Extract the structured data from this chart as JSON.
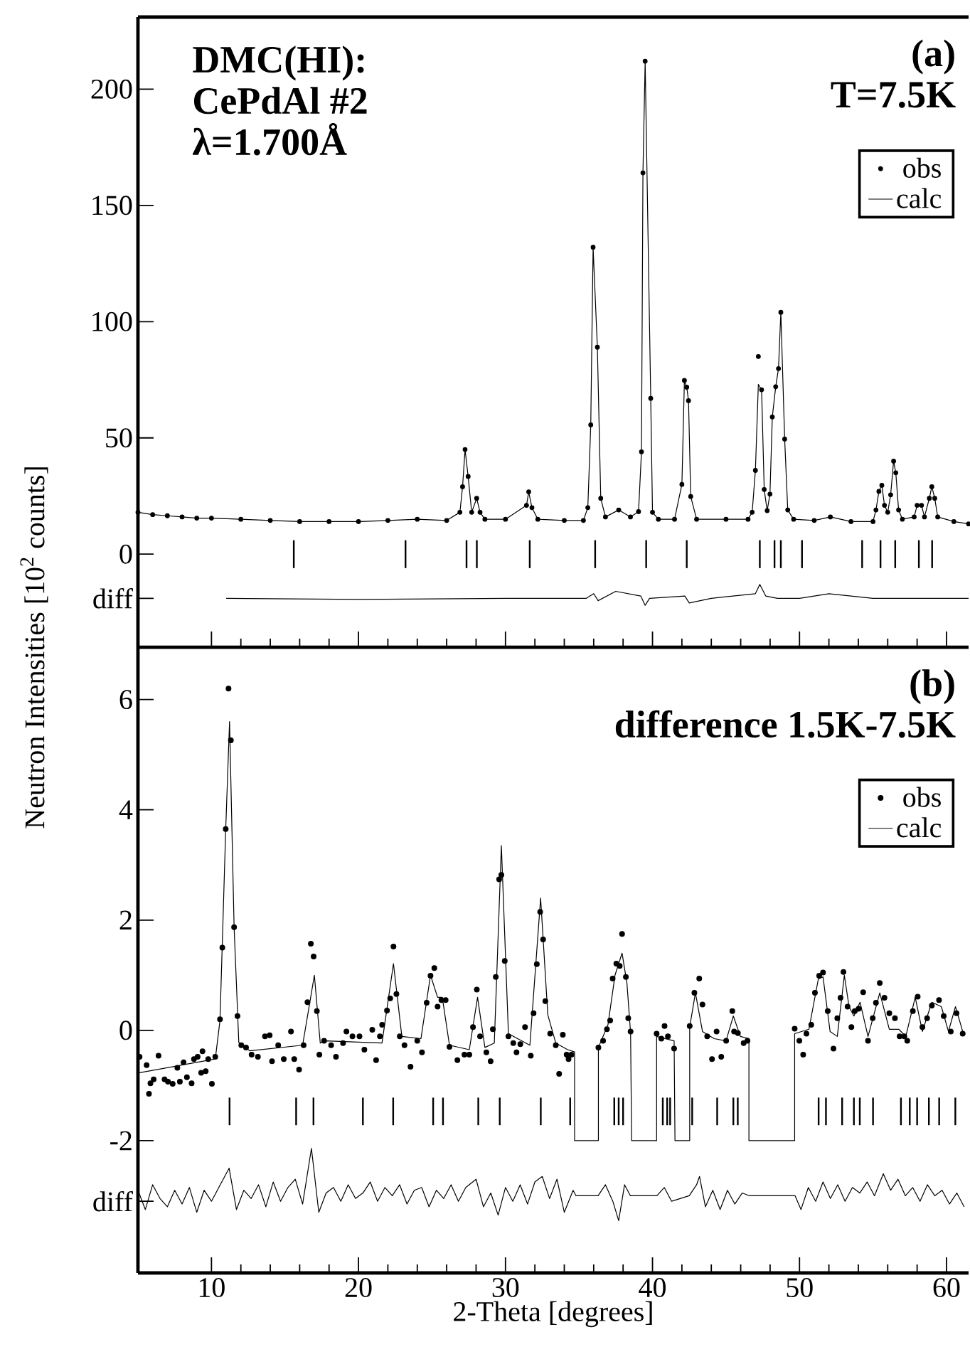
{
  "chart_data": [
    {
      "type": "scatter",
      "title": "(a)",
      "subtitle": "T=7.5K",
      "annotations": [
        "DMC(HI):",
        "CePdAl #2",
        "λ=1.700Å"
      ],
      "xlim": [
        5,
        61.5
      ],
      "xticks": [
        10,
        20,
        30,
        40,
        50,
        60
      ],
      "ylim": [
        -40,
        231
      ],
      "yticks": [
        0,
        50,
        100,
        150,
        200,
        {
          "value": -19,
          "label": "diff"
        }
      ],
      "tick_labels": "y",
      "legend": "top right",
      "x": [
        5,
        6,
        7,
        8,
        9,
        10,
        12,
        14,
        16,
        18,
        20,
        22,
        24,
        26,
        26.9,
        27.08,
        27.25,
        27.46,
        27.7,
        28.04,
        28.27,
        28.6,
        30,
        31.43,
        31.58,
        31.8,
        32.2,
        34,
        35.3,
        35.6,
        35.8,
        35.96,
        36.25,
        36.48,
        36.8,
        37.7,
        38.5,
        39.05,
        39.25,
        39.35,
        39.5,
        39.88,
        40.0,
        40.4,
        41.5,
        42.0,
        42.17,
        42.33,
        42.45,
        42.6,
        43.0,
        45,
        46.5,
        46.78,
        47.0,
        47.2,
        47.42,
        47.6,
        47.8,
        47.99,
        48.15,
        48.38,
        48.57,
        48.73,
        48.99,
        49.2,
        49.6,
        51,
        52.1,
        53.5,
        55.0,
        55.2,
        55.4,
        55.6,
        55.78,
        56.0,
        56.2,
        56.4,
        56.55,
        56.74,
        57.0,
        57.8,
        58.0,
        58.3,
        58.5,
        58.83,
        59.0,
        59.2,
        59.4,
        60.5,
        61.5
      ],
      "series": [
        {
          "name": "obs",
          "marker": "circle",
          "color": "#000000",
          "values": [
            18,
            17,
            16.5,
            16,
            15.5,
            15.5,
            15,
            14.5,
            14,
            14,
            14,
            14.5,
            15,
            14.5,
            18,
            29,
            45,
            33.4,
            18,
            24,
            18,
            15,
            15,
            21,
            26.8,
            20,
            15,
            14.5,
            14.5,
            20,
            55.6,
            132,
            89,
            24,
            16,
            19,
            16,
            18.3,
            44,
            164,
            212,
            67,
            18,
            15,
            15,
            30,
            74.7,
            71.8,
            66,
            24.8,
            15,
            15,
            15,
            18,
            36,
            85,
            70.7,
            27.8,
            18.7,
            25.8,
            59,
            72,
            79.8,
            104,
            49.5,
            19,
            15,
            14.5,
            16,
            14,
            14,
            19,
            27,
            29.6,
            21,
            18,
            25.5,
            40,
            35,
            19,
            15,
            16,
            21,
            21,
            16,
            24,
            29,
            24,
            16,
            14,
            13
          ]
        },
        {
          "name": "calc",
          "type": "line",
          "color": "#000000",
          "values": [
            18,
            17,
            16.5,
            16,
            15.5,
            15.5,
            15,
            14.5,
            14,
            14,
            14,
            14.5,
            15,
            14.5,
            18,
            29,
            45,
            33.4,
            18,
            24,
            18,
            15,
            15,
            21,
            26.8,
            20,
            15,
            14.5,
            14.5,
            20,
            55.6,
            132,
            89,
            24,
            16,
            19,
            16,
            18.3,
            44,
            164,
            212,
            67,
            18,
            15,
            15,
            30,
            74.7,
            71.8,
            66,
            24.8,
            15,
            15,
            15,
            18,
            36,
            73,
            70.7,
            27.8,
            18.7,
            25.8,
            59,
            72,
            79.8,
            104,
            49.5,
            19,
            15,
            14.5,
            16,
            14,
            14,
            19,
            27,
            29.6,
            21,
            18,
            25.5,
            40,
            35,
            19,
            15,
            16,
            21,
            21,
            16,
            24,
            29,
            24,
            16,
            14,
            13
          ]
        },
        {
          "type": "bar",
          "color": "#000000",
          "x": [
            15.6,
            23.2,
            27.35,
            28.05,
            31.65,
            36.1,
            39.57,
            42.33,
            47.3,
            48.3,
            48.73,
            50.17,
            54.26,
            55.51,
            56.51,
            58.12,
            59.02
          ],
          "base": [
            -6,
            -6,
            -6,
            -6,
            -6,
            -6,
            -6,
            -6,
            -6,
            -6,
            -6,
            -6,
            -6,
            -6,
            -6,
            -6,
            -6
          ],
          "values": [
            12,
            12,
            12,
            12,
            12,
            12,
            12,
            12,
            12,
            12,
            12,
            12,
            12,
            12,
            12,
            12,
            12
          ]
        },
        {
          "type": "line",
          "color": "#000000",
          "x": [
            11,
            20,
            30,
            35.5,
            36,
            36.3,
            37.5,
            39.2,
            39.5,
            39.8,
            42.2,
            42.5,
            44,
            47.0,
            47.3,
            47.7,
            48.5,
            50,
            52,
            55,
            58,
            61.5
          ],
          "values": [
            -19,
            -19.5,
            -19,
            -19,
            -17,
            -20,
            -16,
            -18,
            -22,
            -19,
            -18,
            -21,
            -19,
            -17,
            -13,
            -18,
            -19,
            -19,
            -17,
            -19,
            -19,
            -19
          ]
        }
      ]
    },
    {
      "type": "scatter",
      "title": "(b)",
      "subtitle": "difference  1.5K-7.5K",
      "xlabel": "2-Theta [degrees]",
      "ylabel": "Neutron Intensities [10$^{2}$ counts]",
      "xlim": [
        5,
        61.5
      ],
      "xticks": [
        10,
        20,
        30,
        40,
        50,
        60
      ],
      "ylim": [
        -4.4,
        6.95
      ],
      "yticks": [
        -2,
        0,
        2,
        4,
        6,
        {
          "value": -3.1,
          "label": "diff"
        }
      ],
      "legend": "top right",
      "series": [
        {
          "name": "obs",
          "marker": "circle",
          "color": "#000000",
          "x": [
            5.11,
            5.59,
            5.85,
            5.75,
            6.07,
            6.4,
            6.81,
            7.04,
            7.36,
            7.68,
            7.85,
            8.1,
            8.33,
            8.65,
            8.81,
            9.06,
            9.3,
            9.39,
            9.61,
            9.78,
            10.03,
            10.26,
            10.58,
            10.74,
            10.97,
            11.16,
            11.32,
            11.54,
            11.77,
            12.03,
            12.35,
            12.73,
            13.16,
            13.64,
            13.96,
            14.12,
            14.54,
            14.92,
            15.41,
            15.63,
            15.96,
            16.27,
            16.53,
            16.76,
            16.95,
            17.17,
            17.34,
            17.66,
            18.14,
            18.47,
            18.95,
            19.18,
            19.59,
            20.07,
            20.4,
            20.94,
            21.2,
            21.46,
            21.61,
            21.94,
            22.16,
            22.38,
            22.58,
            22.81,
            23.13,
            23.54,
            24.0,
            24.32,
            24.64,
            24.9,
            25.16,
            25.38,
            25.64,
            25.93,
            26.19,
            26.73,
            27.21,
            27.54,
            27.79,
            28.05,
            28.27,
            28.7,
            28.99,
            29.14,
            29.34,
            29.57,
            29.72,
            29.95,
            30.2,
            30.53,
            30.75,
            31.01,
            31.33,
            31.72,
            31.91,
            32.13,
            32.36,
            32.56,
            32.71,
            33.04,
            33.42,
            33.65,
            33.9,
            34.16,
            34.29,
            34.49,
            36.32,
            36.64,
            36.9,
            37.12,
            37.29,
            37.54,
            37.77,
            37.93,
            38.19,
            38.35,
            38.51,
            40.28,
            40.6,
            40.82,
            41.05,
            41.47,
            42.53,
            42.85,
            43.18,
            43.4,
            43.72,
            44.05,
            44.36,
            44.68,
            45.01,
            45.43,
            45.55,
            45.81,
            46.2,
            46.46,
            49.67,
            49.99,
            50.25,
            50.47,
            50.8,
            51.05,
            51.34,
            51.6,
            51.92,
            52.31,
            52.57,
            52.79,
            52.99,
            53.27,
            53.53,
            53.76,
            54.02,
            54.33,
            54.66,
            54.98,
            55.2,
            55.46,
            55.78,
            56.11,
            56.49,
            56.81,
            57.13,
            57.33,
            57.71,
            58.04,
            58.36,
            58.68,
            59.0,
            59.49,
            59.81,
            60.29,
            60.68,
            61.1
          ],
          "values": [
            -0.48,
            -0.63,
            -0.96,
            -1.15,
            -0.89,
            -0.46,
            -0.89,
            -0.93,
            -0.97,
            -0.68,
            -0.93,
            -0.58,
            -0.85,
            -0.96,
            -0.52,
            -0.48,
            -0.77,
            -0.38,
            -0.74,
            -0.52,
            -0.97,
            -0.48,
            0.2,
            1.5,
            3.65,
            6.2,
            5.26,
            1.87,
            0.26,
            -0.27,
            -0.31,
            -0.44,
            -0.48,
            -0.11,
            -0.09,
            -0.56,
            -0.27,
            -0.52,
            -0.02,
            -0.52,
            -0.71,
            -0.27,
            0.51,
            1.57,
            1.34,
            0.35,
            -0.44,
            -0.19,
            -0.27,
            -0.48,
            -0.23,
            -0.02,
            -0.11,
            -0.11,
            -0.35,
            0.01,
            -0.54,
            -0.11,
            0.1,
            0.36,
            0.58,
            1.52,
            0.66,
            -0.11,
            -0.27,
            -0.66,
            -0.19,
            -0.4,
            0.5,
            0.99,
            1.13,
            0.43,
            0.55,
            0.55,
            -0.3,
            -0.54,
            -0.44,
            -0.44,
            0.06,
            0.74,
            -0.11,
            -0.4,
            -0.56,
            0.02,
            0.97,
            2.74,
            2.82,
            1.26,
            -0.11,
            -0.23,
            -0.4,
            -0.25,
            0.06,
            -0.46,
            0.31,
            1.2,
            2.15,
            1.65,
            0.53,
            -0.06,
            -0.27,
            -0.79,
            -0.08,
            -0.44,
            -0.52,
            -0.44,
            -0.31,
            -0.19,
            0.02,
            0.18,
            0.94,
            1.21,
            1.17,
            1.75,
            0.97,
            0.22,
            -0.02,
            -0.06,
            -0.15,
            0.08,
            -0.11,
            -0.33,
            0.08,
            0.68,
            0.94,
            0.47,
            -0.11,
            -0.52,
            -0.02,
            -0.48,
            -0.19,
            0.35,
            -0.02,
            -0.05,
            -0.23,
            -0.19,
            0.03,
            -0.19,
            -0.44,
            -0.06,
            0.1,
            0.68,
            0.99,
            1.05,
            0.35,
            -0.33,
            0.22,
            0.59,
            1.06,
            0.43,
            0.06,
            0.35,
            0.39,
            0.69,
            -0.19,
            0.22,
            0.5,
            0.86,
            0.59,
            0.31,
            0.22,
            -0.11,
            -0.11,
            -0.19,
            0.35,
            0.61,
            0.06,
            0.22,
            0.45,
            0.55,
            0.26,
            -0.02,
            0.31,
            -0.06
          ]
        },
        {
          "name": "calc",
          "type": "line",
          "color": "#000000",
          "x": [
            5.05,
            10.26,
            10.58,
            10.97,
            11.23,
            11.54,
            11.86,
            12.6,
            16.2,
            17.0,
            17.4,
            17.8,
            21.6,
            22.38,
            22.95,
            24.25,
            24.9,
            25.38,
            25.7,
            26.19,
            27.54,
            28.1,
            28.6,
            29.24,
            29.72,
            30.2,
            31.66,
            32.39,
            32.88,
            33.42,
            34.23,
            34.7,
            34.7,
            36.32,
            36.32,
            36.97,
            37.45,
            37.93,
            38.26,
            38.51,
            38.58,
            40.28,
            40.28,
            41.47,
            41.53,
            42.53,
            42.53,
            42.92,
            43.4,
            44.2,
            45.0,
            45.5,
            45.98,
            46.56,
            46.56,
            49.67,
            49.67,
            50.64,
            51.28,
            51.6,
            52.08,
            52.57,
            53.05,
            53.37,
            53.7,
            54.12,
            54.66,
            55.46,
            56.11,
            56.75,
            57.23,
            57.87,
            58.36,
            59.0,
            59.65,
            60.13,
            60.61,
            61.1
          ],
          "values": [
            -0.77,
            -0.52,
            0.18,
            3.65,
            5.6,
            1.87,
            -0.22,
            -0.37,
            -0.27,
            1.0,
            -0.23,
            -0.19,
            -0.23,
            1.21,
            -0.11,
            -0.15,
            1.0,
            0.6,
            0.6,
            -0.27,
            -0.35,
            0.6,
            -0.31,
            -0.23,
            3.35,
            -0.06,
            -0.27,
            2.4,
            0.28,
            -0.23,
            -0.35,
            -0.39,
            -2,
            -2,
            -0.31,
            0.1,
            1.0,
            1.4,
            0.86,
            -0.05,
            -2,
            -2,
            -0.11,
            -0.19,
            -2,
            -2,
            0.06,
            0.68,
            -0.02,
            -0.15,
            -0.19,
            0.26,
            -0.11,
            -0.15,
            -2,
            -2,
            -0.06,
            0.02,
            0.93,
            0.97,
            -0.02,
            -0.11,
            1.0,
            0.43,
            0.26,
            0.51,
            -0.11,
            0.68,
            0.02,
            0.02,
            -0.11,
            0.6,
            -0.02,
            0.51,
            0.43,
            -0.02,
            0.43,
            -0.02
          ]
        },
        {
          "type": "bar",
          "color": "#000000",
          "x": [
            11.23,
            15.76,
            16.94,
            20.3,
            22.36,
            25.08,
            25.75,
            28.15,
            29.61,
            32.4,
            34.4,
            37.4,
            37.7,
            38.0,
            40.7,
            41.0,
            41.2,
            42.7,
            44.4,
            45.5,
            45.8,
            51.3,
            51.8,
            52.9,
            53.7,
            54.1,
            55.0,
            56.9,
            57.5,
            58.0,
            58.8,
            59.5,
            60.6
          ],
          "base": [
            -1.72,
            -1.72,
            -1.72,
            -1.72,
            -1.72,
            -1.72,
            -1.72,
            -1.72,
            -1.72,
            -1.72,
            -1.72,
            -1.72,
            -1.72,
            -1.72,
            -1.72,
            -1.72,
            -1.72,
            -1.72,
            -1.72,
            -1.72,
            -1.72,
            -1.72,
            -1.72,
            -1.72,
            -1.72,
            -1.72,
            -1.72,
            -1.72,
            -1.72,
            -1.72,
            -1.72,
            -1.72,
            -1.72
          ],
          "values": [
            0.5,
            0.5,
            0.5,
            0.5,
            0.5,
            0.5,
            0.5,
            0.5,
            0.5,
            0.5,
            0.5,
            0.5,
            0.5,
            0.5,
            0.5,
            0.5,
            0.5,
            0.5,
            0.5,
            0.5,
            0.5,
            0.5,
            0.5,
            0.5,
            0.5,
            0.5,
            0.5,
            0.5,
            0.5,
            0.5,
            0.5,
            0.5,
            0.5
          ]
        },
        {
          "type": "line",
          "color": "#000000",
          "x": [
            5.0,
            5.5,
            6.0,
            6.5,
            7.0,
            7.5,
            8.0,
            8.5,
            9.0,
            9.5,
            10.0,
            10.5,
            11.2,
            11.7,
            12.2,
            12.7,
            13.2,
            13.7,
            14.2,
            14.7,
            15.2,
            15.7,
            16.2,
            16.8,
            17.3,
            17.8,
            18.3,
            18.8,
            19.3,
            19.8,
            20.3,
            20.8,
            21.3,
            21.8,
            22.3,
            22.8,
            23.3,
            23.8,
            24.3,
            24.8,
            25.3,
            25.8,
            26.3,
            26.8,
            27.3,
            28.0,
            28.5,
            29.0,
            29.5,
            30.0,
            30.5,
            31.0,
            31.5,
            32.0,
            32.5,
            33.0,
            33.5,
            34.0,
            34.6,
            34.8,
            36.3,
            36.8,
            37.3,
            37.7,
            38.1,
            38.5,
            40.3,
            40.8,
            41.3,
            42.5,
            43.0,
            43.2,
            43.6,
            44.1,
            44.6,
            45.1,
            45.6,
            46.1,
            46.6,
            49.7,
            50.1,
            50.6,
            51.1,
            51.6,
            52.1,
            52.6,
            53.1,
            53.6,
            54.1,
            54.6,
            55.1,
            55.7,
            56.2,
            56.7,
            57.2,
            57.7,
            58.2,
            58.7,
            59.2,
            59.7,
            60.2,
            60.7,
            61.2
          ],
          "values": [
            -2.9,
            -3.25,
            -2.8,
            -3.05,
            -3.2,
            -2.9,
            -3.15,
            -2.85,
            -3.3,
            -2.9,
            -3.1,
            -2.85,
            -2.5,
            -3.25,
            -2.9,
            -3.05,
            -2.8,
            -3.2,
            -2.75,
            -3.1,
            -2.85,
            -2.7,
            -3.15,
            -2.14,
            -3.3,
            -2.95,
            -2.85,
            -3.1,
            -2.8,
            -3.05,
            -2.95,
            -2.75,
            -3.1,
            -2.85,
            -3.0,
            -2.8,
            -3.15,
            -2.9,
            -2.85,
            -3.2,
            -2.9,
            -3.05,
            -2.8,
            -3.1,
            -2.85,
            -2.7,
            -3.2,
            -2.95,
            -3.35,
            -2.85,
            -3.1,
            -2.8,
            -3.15,
            -2.75,
            -2.65,
            -3.05,
            -2.7,
            -3.3,
            -2.9,
            -3.0,
            -3.0,
            -2.8,
            -3.1,
            -3.45,
            -2.8,
            -3.0,
            -3.0,
            -2.85,
            -3.1,
            -3.0,
            -2.8,
            -2.65,
            -3.2,
            -2.9,
            -3.25,
            -2.9,
            -3.15,
            -2.95,
            -3.0,
            -3.0,
            -3.25,
            -2.85,
            -3.1,
            -2.75,
            -3.05,
            -2.8,
            -3.1,
            -2.85,
            -2.95,
            -2.75,
            -3.0,
            -2.6,
            -2.9,
            -2.7,
            -3.0,
            -2.85,
            -3.1,
            -2.8,
            -3.0,
            -2.9,
            -3.15,
            -2.95,
            -3.2
          ]
        }
      ]
    }
  ]
}
